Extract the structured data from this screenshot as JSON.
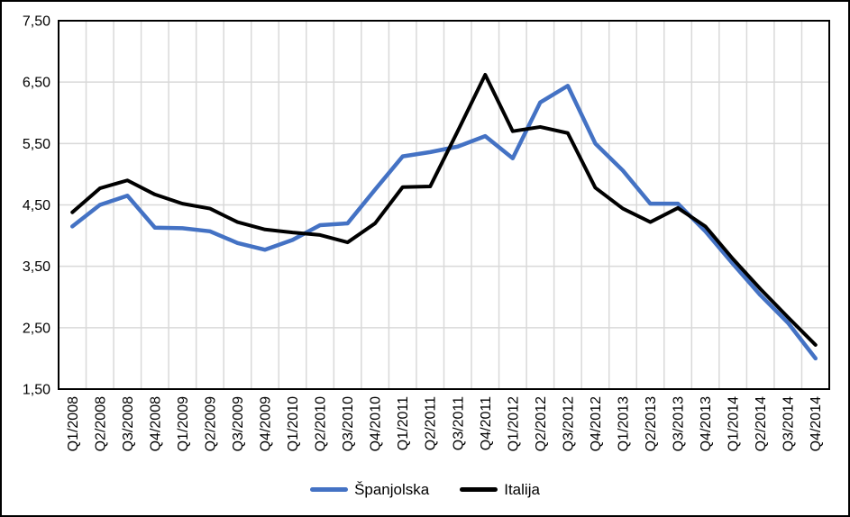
{
  "figure": {
    "background": "#ffffff",
    "border_color": "#000000"
  },
  "chart_data": {
    "type": "line",
    "title": "",
    "xlabel": "",
    "ylabel": "",
    "grid": true,
    "grid_color": "#d9d9d9",
    "plot_border_color": "#000000",
    "legend_position": "bottom",
    "categories": [
      "Q1/2008",
      "Q2/2008",
      "Q3/2008",
      "Q4/2008",
      "Q1/2009",
      "Q2/2009",
      "Q3/2009",
      "Q4/2009",
      "Q1/2010",
      "Q2/2010",
      "Q3/2010",
      "Q4/2010",
      "Q1/2011",
      "Q2/2011",
      "Q3/2011",
      "Q4/2011",
      "Q1/2012",
      "Q2/2012",
      "Q3/2012",
      "Q4/2012",
      "Q1/2013",
      "Q2/2013",
      "Q3/2013",
      "Q4/2013",
      "Q1/2014",
      "Q2/2014",
      "Q3/2014",
      "Q4/2014"
    ],
    "y_axis": {
      "min": 1.5,
      "max": 7.5,
      "tick_values": [
        1.5,
        2.5,
        3.5,
        4.5,
        5.5,
        6.5,
        7.5
      ],
      "tick_labels": [
        "1,50",
        "2,50",
        "3,50",
        "4,50",
        "5,50",
        "6,50",
        "7,50"
      ]
    },
    "series": [
      {
        "name": "Španjolska",
        "color": "#4472c4",
        "values": [
          4.15,
          4.5,
          4.65,
          4.13,
          4.12,
          4.07,
          3.88,
          3.77,
          3.93,
          4.17,
          4.2,
          4.75,
          5.29,
          5.36,
          5.45,
          5.62,
          5.26,
          6.17,
          6.44,
          5.5,
          5.06,
          4.52,
          4.52,
          4.07,
          3.54,
          3.03,
          2.58,
          2.0
        ]
      },
      {
        "name": "Italija",
        "color": "#000000",
        "values": [
          4.38,
          4.77,
          4.9,
          4.67,
          4.52,
          4.44,
          4.22,
          4.1,
          4.05,
          4.01,
          3.89,
          4.2,
          4.79,
          4.8,
          5.7,
          6.62,
          5.7,
          5.77,
          5.67,
          4.78,
          4.44,
          4.22,
          4.45,
          4.15,
          3.62,
          3.13,
          2.67,
          2.22
        ]
      }
    ]
  }
}
